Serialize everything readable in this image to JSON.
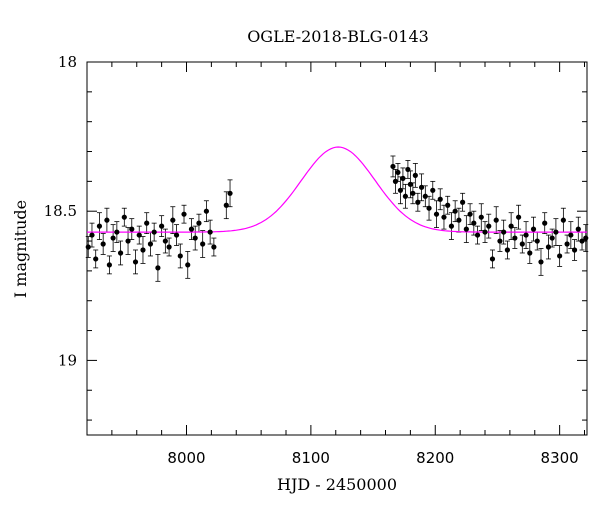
{
  "chart_data": {
    "type": "scatter",
    "title": "OGLE-2018-BLG-0143",
    "xlabel": "HJD - 2450000",
    "ylabel": "I magnitude",
    "xlim": [
      7920,
      8322
    ],
    "ylim": [
      18.0,
      19.25
    ],
    "y_inverted": true,
    "x_ticks": [
      8000,
      8100,
      8200,
      8300
    ],
    "y_ticks": [
      18,
      18.5,
      19
    ],
    "y_tick_labels": [
      "18",
      "18.5",
      "19"
    ],
    "grid": false,
    "legend": "none",
    "colors": {
      "data": "#000000",
      "model": "#ff00ff"
    },
    "model": {
      "name": "",
      "t0": 8122,
      "baseline": 18.57,
      "peak": 18.285,
      "width": 42
    },
    "series": [
      {
        "name": "",
        "marker": "filled-circle",
        "error_bars": true,
        "x": [
          7921,
          7924,
          7927,
          7930,
          7933,
          7936,
          7938,
          7941,
          7944,
          7947,
          7950,
          7953,
          7956,
          7959,
          7962,
          7965,
          7968,
          7971,
          7974,
          7977,
          7980,
          7983,
          7986,
          7989,
          7992,
          7995,
          7998,
          8001,
          8004,
          8007,
          8010,
          8013,
          8016,
          8019,
          8022,
          8032,
          8035,
          8166,
          8168,
          8170,
          8172,
          8174,
          8176,
          8178,
          8180,
          8182,
          8184,
          8186,
          8189,
          8192,
          8195,
          8198,
          8201,
          8204,
          8207,
          8210,
          8213,
          8216,
          8219,
          8222,
          8225,
          8228,
          8231,
          8234,
          8237,
          8240,
          8243,
          8246,
          8249,
          8252,
          8255,
          8258,
          8261,
          8264,
          8267,
          8270,
          8273,
          8276,
          8279,
          8282,
          8285,
          8288,
          8291,
          8294,
          8297,
          8300,
          8303,
          8306,
          8309,
          8312,
          8315,
          8318,
          8321
        ],
        "y": [
          18.62,
          18.58,
          18.66,
          18.55,
          18.61,
          18.53,
          18.68,
          18.59,
          18.57,
          18.64,
          18.52,
          18.6,
          18.56,
          18.67,
          18.58,
          18.63,
          18.54,
          18.61,
          18.57,
          18.69,
          18.55,
          18.6,
          18.62,
          18.53,
          18.58,
          18.65,
          18.51,
          18.68,
          18.56,
          18.59,
          18.54,
          18.61,
          18.5,
          18.57,
          18.62,
          18.48,
          18.44,
          18.35,
          18.4,
          18.37,
          18.43,
          18.39,
          18.45,
          18.36,
          18.41,
          18.44,
          18.38,
          18.47,
          18.42,
          18.45,
          18.49,
          18.43,
          18.51,
          18.46,
          18.52,
          18.48,
          18.55,
          18.5,
          18.53,
          18.47,
          18.56,
          18.51,
          18.54,
          18.58,
          18.52,
          18.57,
          18.55,
          18.66,
          18.53,
          18.6,
          18.57,
          18.63,
          18.55,
          18.59,
          18.52,
          18.61,
          18.58,
          18.64,
          18.56,
          18.6,
          18.67,
          18.54,
          18.62,
          18.59,
          18.57,
          18.65,
          18.53,
          18.61,
          18.58,
          18.63,
          18.56,
          18.6,
          18.59
        ],
        "err": [
          0.035,
          0.04,
          0.03,
          0.045,
          0.035,
          0.04,
          0.03,
          0.045,
          0.035,
          0.04,
          0.03,
          0.045,
          0.035,
          0.04,
          0.03,
          0.045,
          0.035,
          0.04,
          0.03,
          0.045,
          0.035,
          0.04,
          0.03,
          0.045,
          0.035,
          0.04,
          0.03,
          0.045,
          0.035,
          0.04,
          0.03,
          0.045,
          0.035,
          0.04,
          0.03,
          0.045,
          0.045,
          0.035,
          0.04,
          0.03,
          0.045,
          0.035,
          0.04,
          0.03,
          0.045,
          0.035,
          0.04,
          0.03,
          0.045,
          0.035,
          0.04,
          0.03,
          0.045,
          0.035,
          0.04,
          0.03,
          0.045,
          0.035,
          0.04,
          0.03,
          0.045,
          0.035,
          0.04,
          0.03,
          0.045,
          0.035,
          0.04,
          0.03,
          0.045,
          0.035,
          0.04,
          0.03,
          0.045,
          0.035,
          0.04,
          0.03,
          0.045,
          0.035,
          0.04,
          0.03,
          0.045,
          0.035,
          0.04,
          0.03,
          0.045,
          0.035,
          0.04,
          0.03,
          0.045,
          0.035,
          0.04,
          0.03,
          0.045
        ]
      }
    ]
  }
}
